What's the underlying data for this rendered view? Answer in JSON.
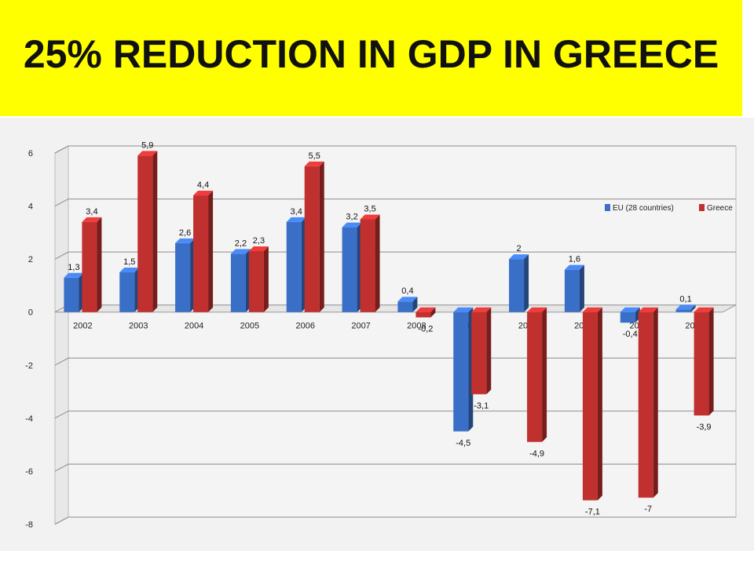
{
  "slide": {
    "title": "25% REDUCTION IN GDP IN GREECE"
  },
  "chart_data": {
    "type": "bar",
    "categories": [
      "2002",
      "2003",
      "2004",
      "2005",
      "2006",
      "2007",
      "2008",
      "2009",
      "2010",
      "2011",
      "2012",
      "2013"
    ],
    "series": [
      {
        "name": "EU (28 countries)",
        "color": "#3a6fc7",
        "values": [
          1.3,
          1.5,
          2.6,
          2.2,
          3.4,
          3.2,
          0.4,
          -4.5,
          2,
          1.6,
          -0.4,
          0.1
        ],
        "labels": [
          "1,3",
          "1,5",
          "2,6",
          "2,2",
          "3,4",
          "3,2",
          "0,4",
          "-4,5",
          "2",
          "1,6",
          "-0,4",
          "0,1"
        ]
      },
      {
        "name": "Greece",
        "color": "#c0302e",
        "values": [
          3.4,
          5.9,
          4.4,
          2.3,
          5.5,
          3.5,
          -0.2,
          -3.1,
          -4.9,
          -7.1,
          -7,
          -3.9
        ],
        "labels": [
          "3,4",
          "5,9",
          "4,4",
          "2,3",
          "5,5",
          "3,5",
          "-0,2",
          "-3,1",
          "-4,9",
          "-7,1",
          "-7",
          "-3,9"
        ]
      }
    ],
    "ylim": [
      -8,
      6
    ],
    "yticks": [
      "6",
      "4",
      "2",
      "0",
      "-2",
      "-4",
      "-6",
      "-8"
    ],
    "grid": true,
    "legend": "top-right",
    "xlabel": "",
    "ylabel": ""
  }
}
